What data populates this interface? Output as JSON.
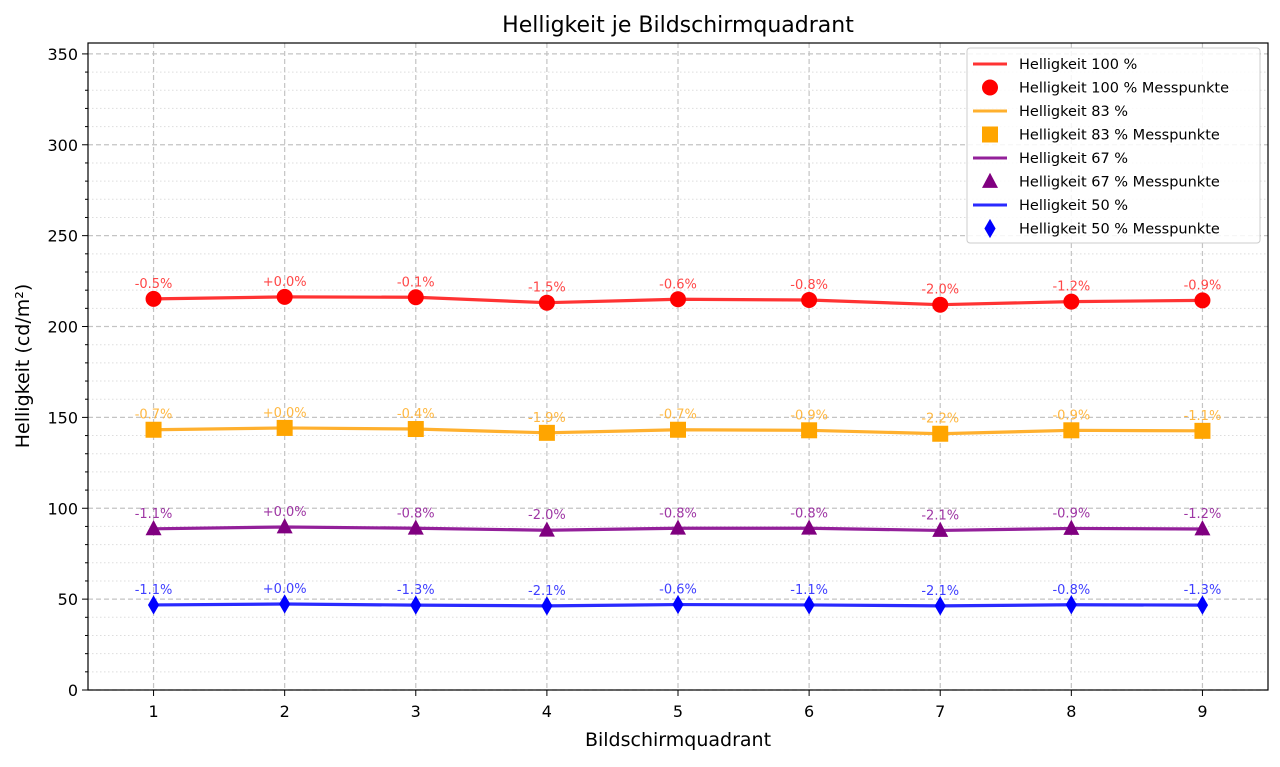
{
  "chart_data": {
    "type": "line",
    "title": "Helligkeit je Bildschirmquadrant",
    "xlabel": "Bildschirmquadrant",
    "ylabel": "Helligkeit (cd/m²)",
    "x": [
      1,
      2,
      3,
      4,
      5,
      6,
      7,
      8,
      9
    ],
    "xlim": [
      0.5,
      9.5
    ],
    "ylim": [
      0,
      356
    ],
    "yticks": [
      0,
      50,
      100,
      150,
      200,
      250,
      300,
      350
    ],
    "grid": {
      "major": "dashed",
      "minor": "dotted",
      "minor_step": 10
    },
    "legend_position": "top-right",
    "series": [
      {
        "name": "Helligkeit 100 %",
        "marker_name": "Helligkeit 100 % Messpunkte",
        "color": "#ff0000",
        "line_color": "#ff3333",
        "marker": "circle",
        "values": [
          215.2,
          216.3,
          216.1,
          213.1,
          215.0,
          214.6,
          212.0,
          213.7,
          214.4
        ],
        "labels": [
          "-0.5%",
          "+0.0%",
          "-0.1%",
          "-1.5%",
          "-0.6%",
          "-0.8%",
          "-2.0%",
          "-1.2%",
          "-0.9%"
        ]
      },
      {
        "name": "Helligkeit 83 %",
        "marker_name": "Helligkeit 83 % Messpunkte",
        "color": "#ffa500",
        "line_color": "#ffb02e",
        "marker": "square",
        "values": [
          143.2,
          144.2,
          143.6,
          141.5,
          143.2,
          142.9,
          141.0,
          142.9,
          142.6
        ],
        "labels": [
          "-0.7%",
          "+0.0%",
          "-0.4%",
          "-1.9%",
          "-0.7%",
          "-0.9%",
          "-2.2%",
          "-0.9%",
          "-1.1%"
        ]
      },
      {
        "name": "Helligkeit 67 %",
        "marker_name": "Helligkeit 67 % Messpunkte",
        "color": "#800080",
        "line_color": "#93209a",
        "marker": "triangle",
        "values": [
          88.7,
          89.7,
          89.0,
          87.9,
          89.0,
          89.0,
          87.8,
          88.9,
          88.6
        ],
        "labels": [
          "-1.1%",
          "+0.0%",
          "-0.8%",
          "-2.0%",
          "-0.8%",
          "-0.8%",
          "-2.1%",
          "-0.9%",
          "-1.2%"
        ]
      },
      {
        "name": "Helligkeit 50 %",
        "marker_name": "Helligkeit 50 % Messpunkte",
        "color": "#0000ff",
        "line_color": "#2a2aff",
        "marker": "diamond",
        "values": [
          46.8,
          47.3,
          46.7,
          46.3,
          47.0,
          46.8,
          46.3,
          46.9,
          46.7
        ],
        "labels": [
          "-1.1%",
          "+0.0%",
          "-1.3%",
          "-2.1%",
          "-0.6%",
          "-1.1%",
          "-2.1%",
          "-0.8%",
          "-1.3%"
        ]
      }
    ]
  }
}
